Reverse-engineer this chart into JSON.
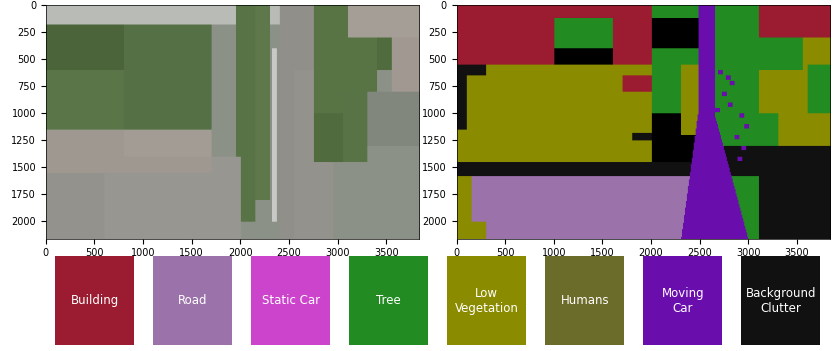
{
  "legend_items": [
    {
      "label": "Building",
      "color": "#9B1B30"
    },
    {
      "label": "Road",
      "color": "#9B72AA"
    },
    {
      "label": "Static Car",
      "color": "#CC44CC"
    },
    {
      "label": "Tree",
      "color": "#228B22"
    },
    {
      "label": "Low\nVegetation",
      "color": "#8B8B00"
    },
    {
      "label": "Humans",
      "color": "#6B6B2A"
    },
    {
      "label": "Moving\nCar",
      "color": "#6A0DAD"
    },
    {
      "label": "Background\nClutter",
      "color": "#111111"
    }
  ],
  "left_xticks": [
    0,
    500,
    1000,
    1500,
    2000,
    2500,
    3000,
    3500
  ],
  "left_yticks": [
    0,
    250,
    500,
    750,
    1000,
    1250,
    1500,
    1750,
    2000
  ],
  "right_xticks": [
    0,
    500,
    1000,
    1500,
    2000,
    2500,
    3000,
    3500
  ],
  "right_yticks": [
    0,
    250,
    500,
    750,
    1000,
    1250,
    1500,
    1750,
    2000
  ],
  "xlim": [
    0,
    3840
  ],
  "ylim": [
    2160,
    0
  ],
  "background_color": "#ffffff",
  "legend_text_color": "#ffffff",
  "legend_fontsize": 8.5,
  "tick_fontsize": 7
}
